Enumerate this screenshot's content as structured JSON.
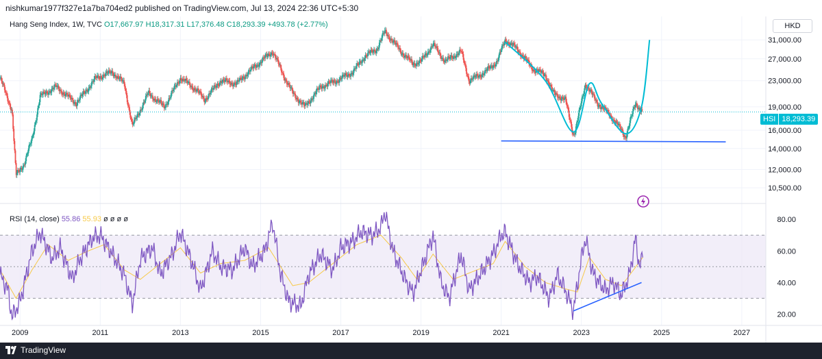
{
  "header": {
    "publish_text": "nishkumar1977f327e1a7ba704ed2 published on TradingView.com, Jul 13, 2024 22:36 UTC+5:30"
  },
  "legend": {
    "title": "Hang Seng Index, 1W, TVC",
    "open": "O17,667.97",
    "high": "H18,317.31",
    "low": "L17,376.48",
    "close": "C18,293.39",
    "change": "+493.78 (+2.77%)"
  },
  "rsi_legend": {
    "label": "RSI (14, close)",
    "rsi_value": "55.86",
    "ma_value": "55.93",
    "extras": "ø ø ø ø"
  },
  "currency": "HKD",
  "price_badge": {
    "symbol": "HSI",
    "price": "18,293.39"
  },
  "footer": {
    "brand": "TradingView"
  },
  "colors": {
    "up": "#26a69a",
    "down": "#ef5350",
    "pattern": "#00bcd4",
    "trendline": "#2962ff",
    "rsi": "#7e57c2",
    "rsi_ma": "#f7c948",
    "band_fill": "#ede7f6",
    "lightning": "#9c27b0"
  },
  "chart_data": [
    {
      "type": "candlestick",
      "title": "Hang Seng Index, 1W, TVC",
      "x_range": [
        2008.5,
        2027.6
      ],
      "y_scale": "log",
      "y_ticks": [
        31000,
        27000,
        23000,
        19000,
        16000,
        14000,
        12000,
        10500
      ],
      "y_tick_labels": [
        "31,000.00",
        "27,000.00",
        "23,000.00",
        "19,000.00",
        "16,000.00",
        "14,000.00",
        "12,000.00",
        "10,500.00"
      ],
      "x_ticks": [
        2009,
        2011,
        2013,
        2015,
        2017,
        2019,
        2021,
        2023,
        2025,
        2027
      ],
      "last_price": 18293.39,
      "price_path": [
        [
          2008.5,
          23500
        ],
        [
          2008.8,
          18500
        ],
        [
          2008.9,
          11500
        ],
        [
          2009.1,
          12500
        ],
        [
          2009.3,
          15000
        ],
        [
          2009.5,
          20500
        ],
        [
          2009.9,
          22000
        ],
        [
          2010.4,
          19500
        ],
        [
          2010.9,
          23500
        ],
        [
          2011.3,
          24500
        ],
        [
          2011.6,
          22500
        ],
        [
          2011.8,
          16500
        ],
        [
          2012.2,
          21000
        ],
        [
          2012.6,
          19000
        ],
        [
          2013.0,
          23500
        ],
        [
          2013.4,
          21500
        ],
        [
          2013.6,
          20000
        ],
        [
          2014.0,
          23000
        ],
        [
          2014.4,
          22500
        ],
        [
          2014.7,
          24500
        ],
        [
          2015.3,
          28500
        ],
        [
          2015.6,
          23500
        ],
        [
          2015.8,
          21000
        ],
        [
          2016.1,
          19000
        ],
        [
          2016.5,
          22000
        ],
        [
          2016.9,
          23000
        ],
        [
          2017.3,
          24500
        ],
        [
          2017.6,
          27500
        ],
        [
          2017.9,
          29000
        ],
        [
          2018.1,
          33000
        ],
        [
          2018.5,
          28500
        ],
        [
          2018.8,
          26000
        ],
        [
          2019.0,
          26500
        ],
        [
          2019.3,
          30000
        ],
        [
          2019.6,
          26500
        ],
        [
          2020.0,
          28500
        ],
        [
          2020.2,
          23000
        ],
        [
          2020.6,
          24500
        ],
        [
          2020.9,
          26500
        ],
        [
          2021.1,
          31000
        ],
        [
          2021.4,
          29000
        ],
        [
          2021.8,
          25000
        ],
        [
          2022.1,
          24000
        ],
        [
          2022.3,
          21000
        ],
        [
          2022.6,
          20000
        ],
        [
          2022.8,
          15500
        ],
        [
          2022.85,
          16000
        ],
        [
          2023.1,
          22500
        ],
        [
          2023.4,
          19500
        ],
        [
          2023.7,
          18000
        ],
        [
          2024.0,
          16000
        ],
        [
          2024.1,
          15200
        ],
        [
          2024.35,
          19500
        ],
        [
          2024.53,
          18293
        ]
      ],
      "annotations": {
        "pattern_curve": [
          [
            2021.1,
            30500
          ],
          [
            2022.1,
            23000
          ],
          [
            2022.8,
            15800
          ],
          [
            2023.2,
            22500
          ],
          [
            2023.5,
            19500
          ],
          [
            2024.1,
            15600
          ],
          [
            2024.5,
            19000
          ],
          [
            2024.7,
            31000
          ]
        ],
        "support_line": [
          [
            2021.0,
            14800
          ],
          [
            2026.6,
            14700
          ]
        ]
      }
    },
    {
      "type": "line",
      "title": "RSI (14, close)",
      "y_range": [
        15,
        87
      ],
      "y_ticks": [
        80,
        60,
        40,
        20
      ],
      "y_tick_labels": [
        "80.00",
        "60.00",
        "40.00",
        "20.00"
      ],
      "overbought": 70,
      "middle": 50,
      "oversold": 30,
      "series": [
        {
          "name": "RSI",
          "points": [
            [
              2008.5,
              45
            ],
            [
              2008.7,
              35
            ],
            [
              2008.8,
              18
            ],
            [
              2009.0,
              28
            ],
            [
              2009.3,
              60
            ],
            [
              2009.5,
              72
            ],
            [
              2009.8,
              55
            ],
            [
              2010.0,
              62
            ],
            [
              2010.3,
              42
            ],
            [
              2010.5,
              55
            ],
            [
              2010.8,
              68
            ],
            [
              2011.0,
              70
            ],
            [
              2011.3,
              58
            ],
            [
              2011.6,
              45
            ],
            [
              2011.8,
              26
            ],
            [
              2012.0,
              55
            ],
            [
              2012.3,
              62
            ],
            [
              2012.5,
              45
            ],
            [
              2012.8,
              58
            ],
            [
              2013.0,
              72
            ],
            [
              2013.3,
              52
            ],
            [
              2013.5,
              35
            ],
            [
              2013.8,
              60
            ],
            [
              2014.0,
              50
            ],
            [
              2014.3,
              48
            ],
            [
              2014.6,
              62
            ],
            [
              2014.8,
              50
            ],
            [
              2015.1,
              60
            ],
            [
              2015.3,
              78
            ],
            [
              2015.5,
              45
            ],
            [
              2015.7,
              28
            ],
            [
              2016.0,
              25
            ],
            [
              2016.2,
              45
            ],
            [
              2016.5,
              58
            ],
            [
              2016.8,
              48
            ],
            [
              2017.0,
              62
            ],
            [
              2017.3,
              66
            ],
            [
              2017.5,
              72
            ],
            [
              2017.8,
              70
            ],
            [
              2018.0,
              75
            ],
            [
              2018.1,
              85
            ],
            [
              2018.3,
              60
            ],
            [
              2018.6,
              42
            ],
            [
              2018.8,
              33
            ],
            [
              2019.1,
              55
            ],
            [
              2019.3,
              70
            ],
            [
              2019.5,
              40
            ],
            [
              2019.7,
              30
            ],
            [
              2020.0,
              58
            ],
            [
              2020.2,
              35
            ],
            [
              2020.5,
              46
            ],
            [
              2020.8,
              58
            ],
            [
              2021.0,
              70
            ],
            [
              2021.1,
              72
            ],
            [
              2021.4,
              52
            ],
            [
              2021.7,
              40
            ],
            [
              2021.9,
              44
            ],
            [
              2022.2,
              30
            ],
            [
              2022.4,
              45
            ],
            [
              2022.6,
              35
            ],
            [
              2022.8,
              22
            ],
            [
              2023.0,
              55
            ],
            [
              2023.1,
              68
            ],
            [
              2023.3,
              45
            ],
            [
              2023.6,
              35
            ],
            [
              2023.8,
              40
            ],
            [
              2024.0,
              32
            ],
            [
              2024.2,
              45
            ],
            [
              2024.35,
              68
            ],
            [
              2024.45,
              50
            ],
            [
              2024.53,
              55.86
            ]
          ]
        },
        {
          "name": "RSI-based MA",
          "points": [
            [
              2008.5,
              48
            ],
            [
              2008.9,
              30
            ],
            [
              2009.3,
              48
            ],
            [
              2009.7,
              64
            ],
            [
              2010.2,
              54
            ],
            [
              2010.7,
              60
            ],
            [
              2011.1,
              64
            ],
            [
              2011.6,
              48
            ],
            [
              2012.0,
              42
            ],
            [
              2012.5,
              52
            ],
            [
              2013.0,
              62
            ],
            [
              2013.5,
              46
            ],
            [
              2014.0,
              52
            ],
            [
              2014.6,
              54
            ],
            [
              2015.2,
              62
            ],
            [
              2015.8,
              38
            ],
            [
              2016.2,
              40
            ],
            [
              2016.8,
              52
            ],
            [
              2017.4,
              64
            ],
            [
              2018.0,
              70
            ],
            [
              2018.5,
              56
            ],
            [
              2018.9,
              42
            ],
            [
              2019.3,
              58
            ],
            [
              2019.8,
              42
            ],
            [
              2020.2,
              46
            ],
            [
              2020.8,
              52
            ],
            [
              2021.1,
              66
            ],
            [
              2021.6,
              50
            ],
            [
              2022.1,
              40
            ],
            [
              2022.6,
              36
            ],
            [
              2022.9,
              34
            ],
            [
              2023.2,
              56
            ],
            [
              2023.6,
              42
            ],
            [
              2024.0,
              38
            ],
            [
              2024.3,
              48
            ],
            [
              2024.53,
              55.93
            ]
          ]
        }
      ],
      "annotations": {
        "rsi_trendline": [
          [
            2022.8,
            22
          ],
          [
            2024.5,
            40
          ]
        ]
      }
    }
  ]
}
